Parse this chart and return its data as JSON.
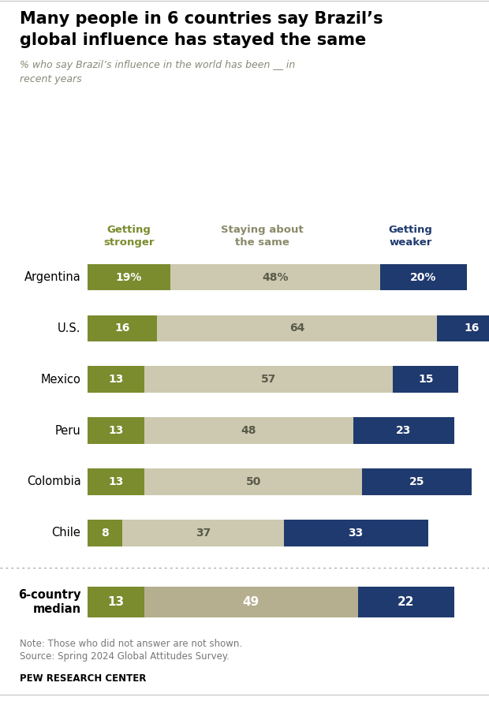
{
  "title_line1": "Many people in 6 countries say Brazil’s",
  "title_line2": "global influence has stayed the same",
  "subtitle": "% who say Brazil’s influence in the world has been __ in\nrecent years",
  "categories": [
    "Argentina",
    "U.S.",
    "Mexico",
    "Peru",
    "Colombia",
    "Chile"
  ],
  "median_label": "6-country\nmedian",
  "getting_stronger": [
    19,
    16,
    13,
    13,
    13,
    8
  ],
  "staying_same": [
    48,
    64,
    57,
    48,
    50,
    37
  ],
  "getting_weaker": [
    20,
    16,
    15,
    23,
    25,
    33
  ],
  "median_stronger": 13,
  "median_same": 49,
  "median_weaker": 22,
  "color_stronger": "#7a8c2e",
  "color_same_regular": "#ccc9b0",
  "color_same_median": "#b5af8f",
  "color_weaker": "#1f3a6e",
  "note_line1": "Note: Those who did not answer are not shown.",
  "note_line2": "Source: Spring 2024 Global Attitudes Survey.",
  "source_label": "PEW RESEARCH CENTER",
  "col_header_stronger": "Getting\nstronger",
  "col_header_same": "Staying about\nthe same",
  "col_header_weaker": "Getting\nweaker",
  "col_header_stronger_color": "#7a8c2e",
  "col_header_same_color": "#8a8a6a",
  "col_header_weaker_color": "#1f3a6e",
  "bar_height": 0.52,
  "median_bar_height": 0.6,
  "xlim_left": -20,
  "xlim_right": 92
}
